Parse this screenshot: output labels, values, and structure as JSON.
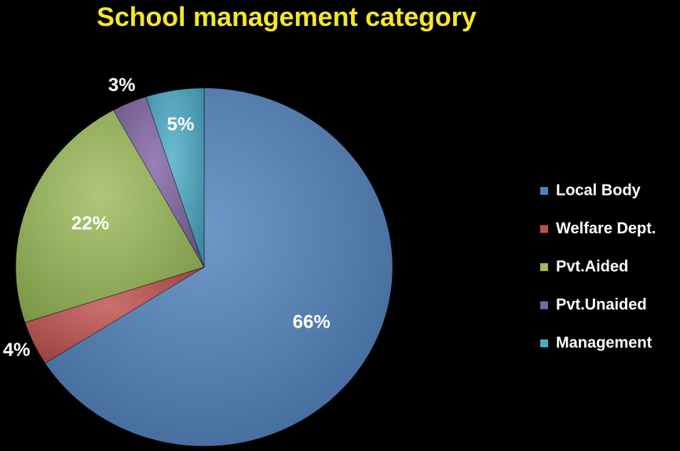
{
  "chart_data": {
    "type": "pie",
    "title": "School management category",
    "categories": [
      "Local Body",
      "Welfare Dept.",
      "Pvt.Aided",
      "Pvt.Unaided",
      "Management"
    ],
    "values": [
      66,
      4,
      22,
      3,
      5
    ],
    "value_labels": [
      "66%",
      "4%",
      "22%",
      "3%",
      "5%"
    ],
    "colors": [
      "#4f81bd",
      "#c0504d",
      "#9bbb59",
      "#8064a2",
      "#4bacc6"
    ],
    "legend": "right"
  }
}
